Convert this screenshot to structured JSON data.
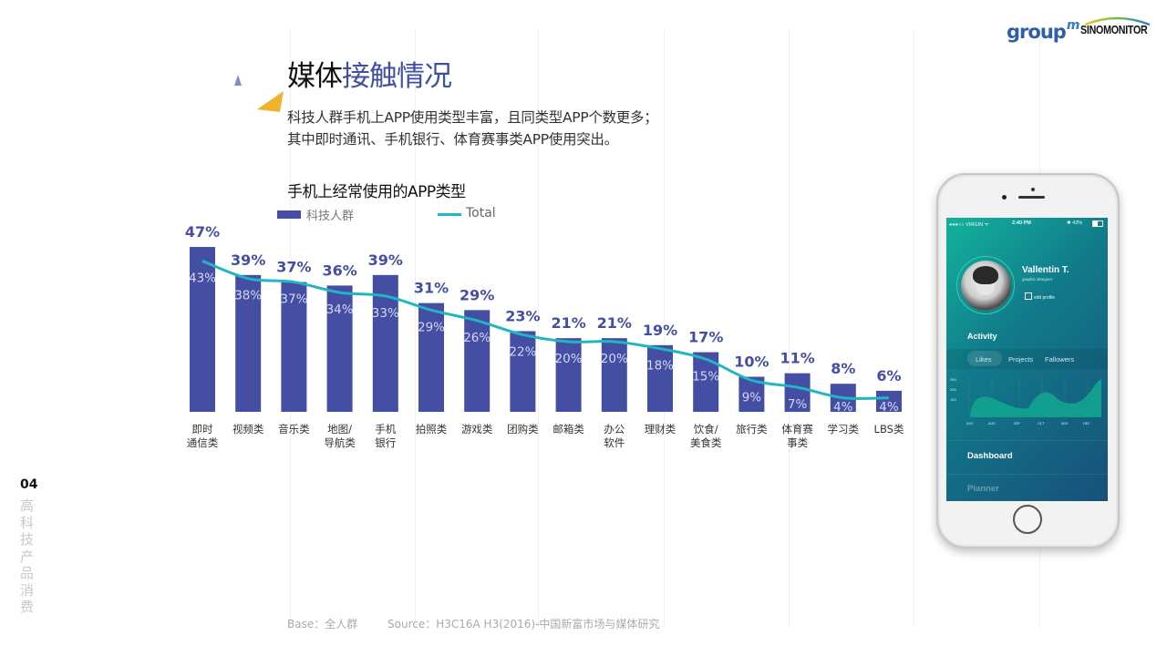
{
  "header": {
    "title_plain": "媒体",
    "title_highlight": "接触情况",
    "subtitle_lines": [
      "科技人群手机上APP使用类型丰富，且同类型APP个数更多；",
      "其中即时通讯、手机银行、体育赛事类APP使用突出。"
    ]
  },
  "logos": {
    "groupm_text": "group",
    "groupm_mark": "m",
    "sinomonitor": "SINOMONITOR"
  },
  "sidebar": {
    "page_number": "04",
    "section_label": "高科技产品消费"
  },
  "footer": {
    "base": "Base：全人群",
    "source": "Source：H3C16A H3(2016)-中国新富市场与媒体研究"
  },
  "colors": {
    "bar": "#444ea3",
    "line": "#1fb7c3",
    "title_accent": "#3f4fa3",
    "triangle_blue": "#7f8fc4",
    "triangle_yellow": "#f2b22e"
  },
  "chart_data": {
    "type": "bar",
    "title": "手机上经常使用的APP类型",
    "xlabel": "",
    "ylabel": "",
    "ylim": [
      0,
      50
    ],
    "grid": false,
    "legend_position": "top-left",
    "categories": [
      [
        "即时",
        "通信类"
      ],
      [
        "视频类"
      ],
      [
        "音乐类"
      ],
      [
        "地图/",
        "导航类"
      ],
      [
        "手机",
        "银行"
      ],
      [
        "拍照类"
      ],
      [
        "游戏类"
      ],
      [
        "团购类"
      ],
      [
        "邮箱类"
      ],
      [
        "办公",
        "软件"
      ],
      [
        "理财类"
      ],
      [
        "饮食/",
        "美食类"
      ],
      [
        "旅行类"
      ],
      [
        "体育赛",
        "事类"
      ],
      [
        "学习类"
      ],
      [
        "LBS类"
      ]
    ],
    "series": [
      {
        "name": "科技人群",
        "type": "bar",
        "values": [
          47,
          39,
          37,
          36,
          39,
          31,
          29,
          23,
          21,
          21,
          19,
          17,
          10,
          11,
          8,
          6
        ],
        "labels": [
          "47%",
          "39%",
          "37%",
          "36%",
          "39%",
          "31%",
          "29%",
          "23%",
          "21%",
          "21%",
          "19%",
          "17%",
          "10%",
          "11%",
          "8%",
          "6%"
        ]
      },
      {
        "name": "Total",
        "type": "line",
        "values": [
          43,
          38,
          37,
          34,
          33,
          29,
          26,
          22,
          20,
          20,
          18,
          15,
          9,
          7,
          4,
          4
        ],
        "labels": [
          "43%",
          "38%",
          "37%",
          "34%",
          "33%",
          "29%",
          "26%",
          "22%",
          "20%",
          "20%",
          "18%",
          "15%",
          "9%",
          "7%",
          "4%",
          "4%"
        ]
      }
    ]
  },
  "phone": {
    "status_carrier": "●●●○○ VIRGIN ᯤ",
    "status_time": "2:40 PM",
    "status_battery": "✱ 43%",
    "user_name": "Vallentin T.",
    "user_role": "graphic designer",
    "edit_profile": "edit profile",
    "section": "Activity",
    "tabs": [
      "Likes",
      "Projects",
      "Fallowers"
    ],
    "mini_chart": {
      "y_ticks": [
        "300",
        "200",
        "100"
      ],
      "x_labels": [
        "JULY",
        "AUG",
        "SEP",
        "OCT",
        "NOV",
        "DEC"
      ]
    },
    "menu": [
      "Dashboard",
      "Planner"
    ]
  }
}
